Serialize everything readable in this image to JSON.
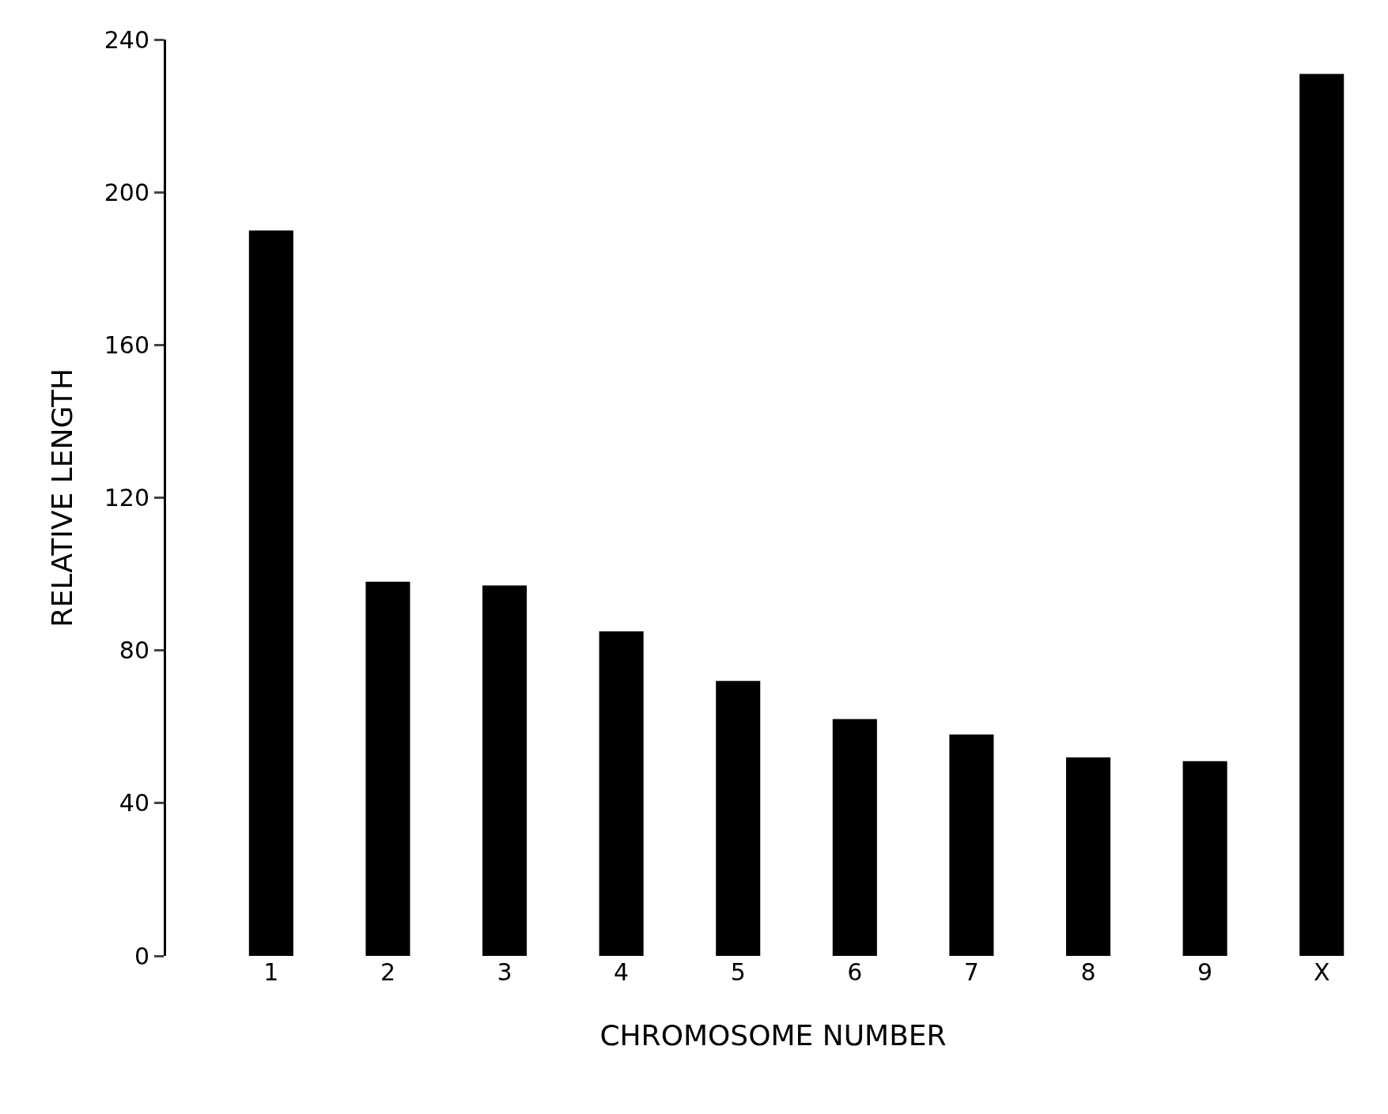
{
  "chart_data": {
    "type": "bar",
    "xlabel": "CHROMOSOME NUMBER",
    "ylabel": "RELATIVE LENGTH",
    "categories": [
      "1",
      "2",
      "3",
      "4",
      "5",
      "6",
      "7",
      "8",
      "9",
      "X"
    ],
    "values": [
      190,
      98,
      97,
      85,
      72,
      62,
      58,
      52,
      51,
      231
    ],
    "color": "#000000",
    "ylim": [
      0,
      240
    ],
    "yticks": [
      0,
      40,
      80,
      120,
      160,
      200,
      240
    ]
  }
}
